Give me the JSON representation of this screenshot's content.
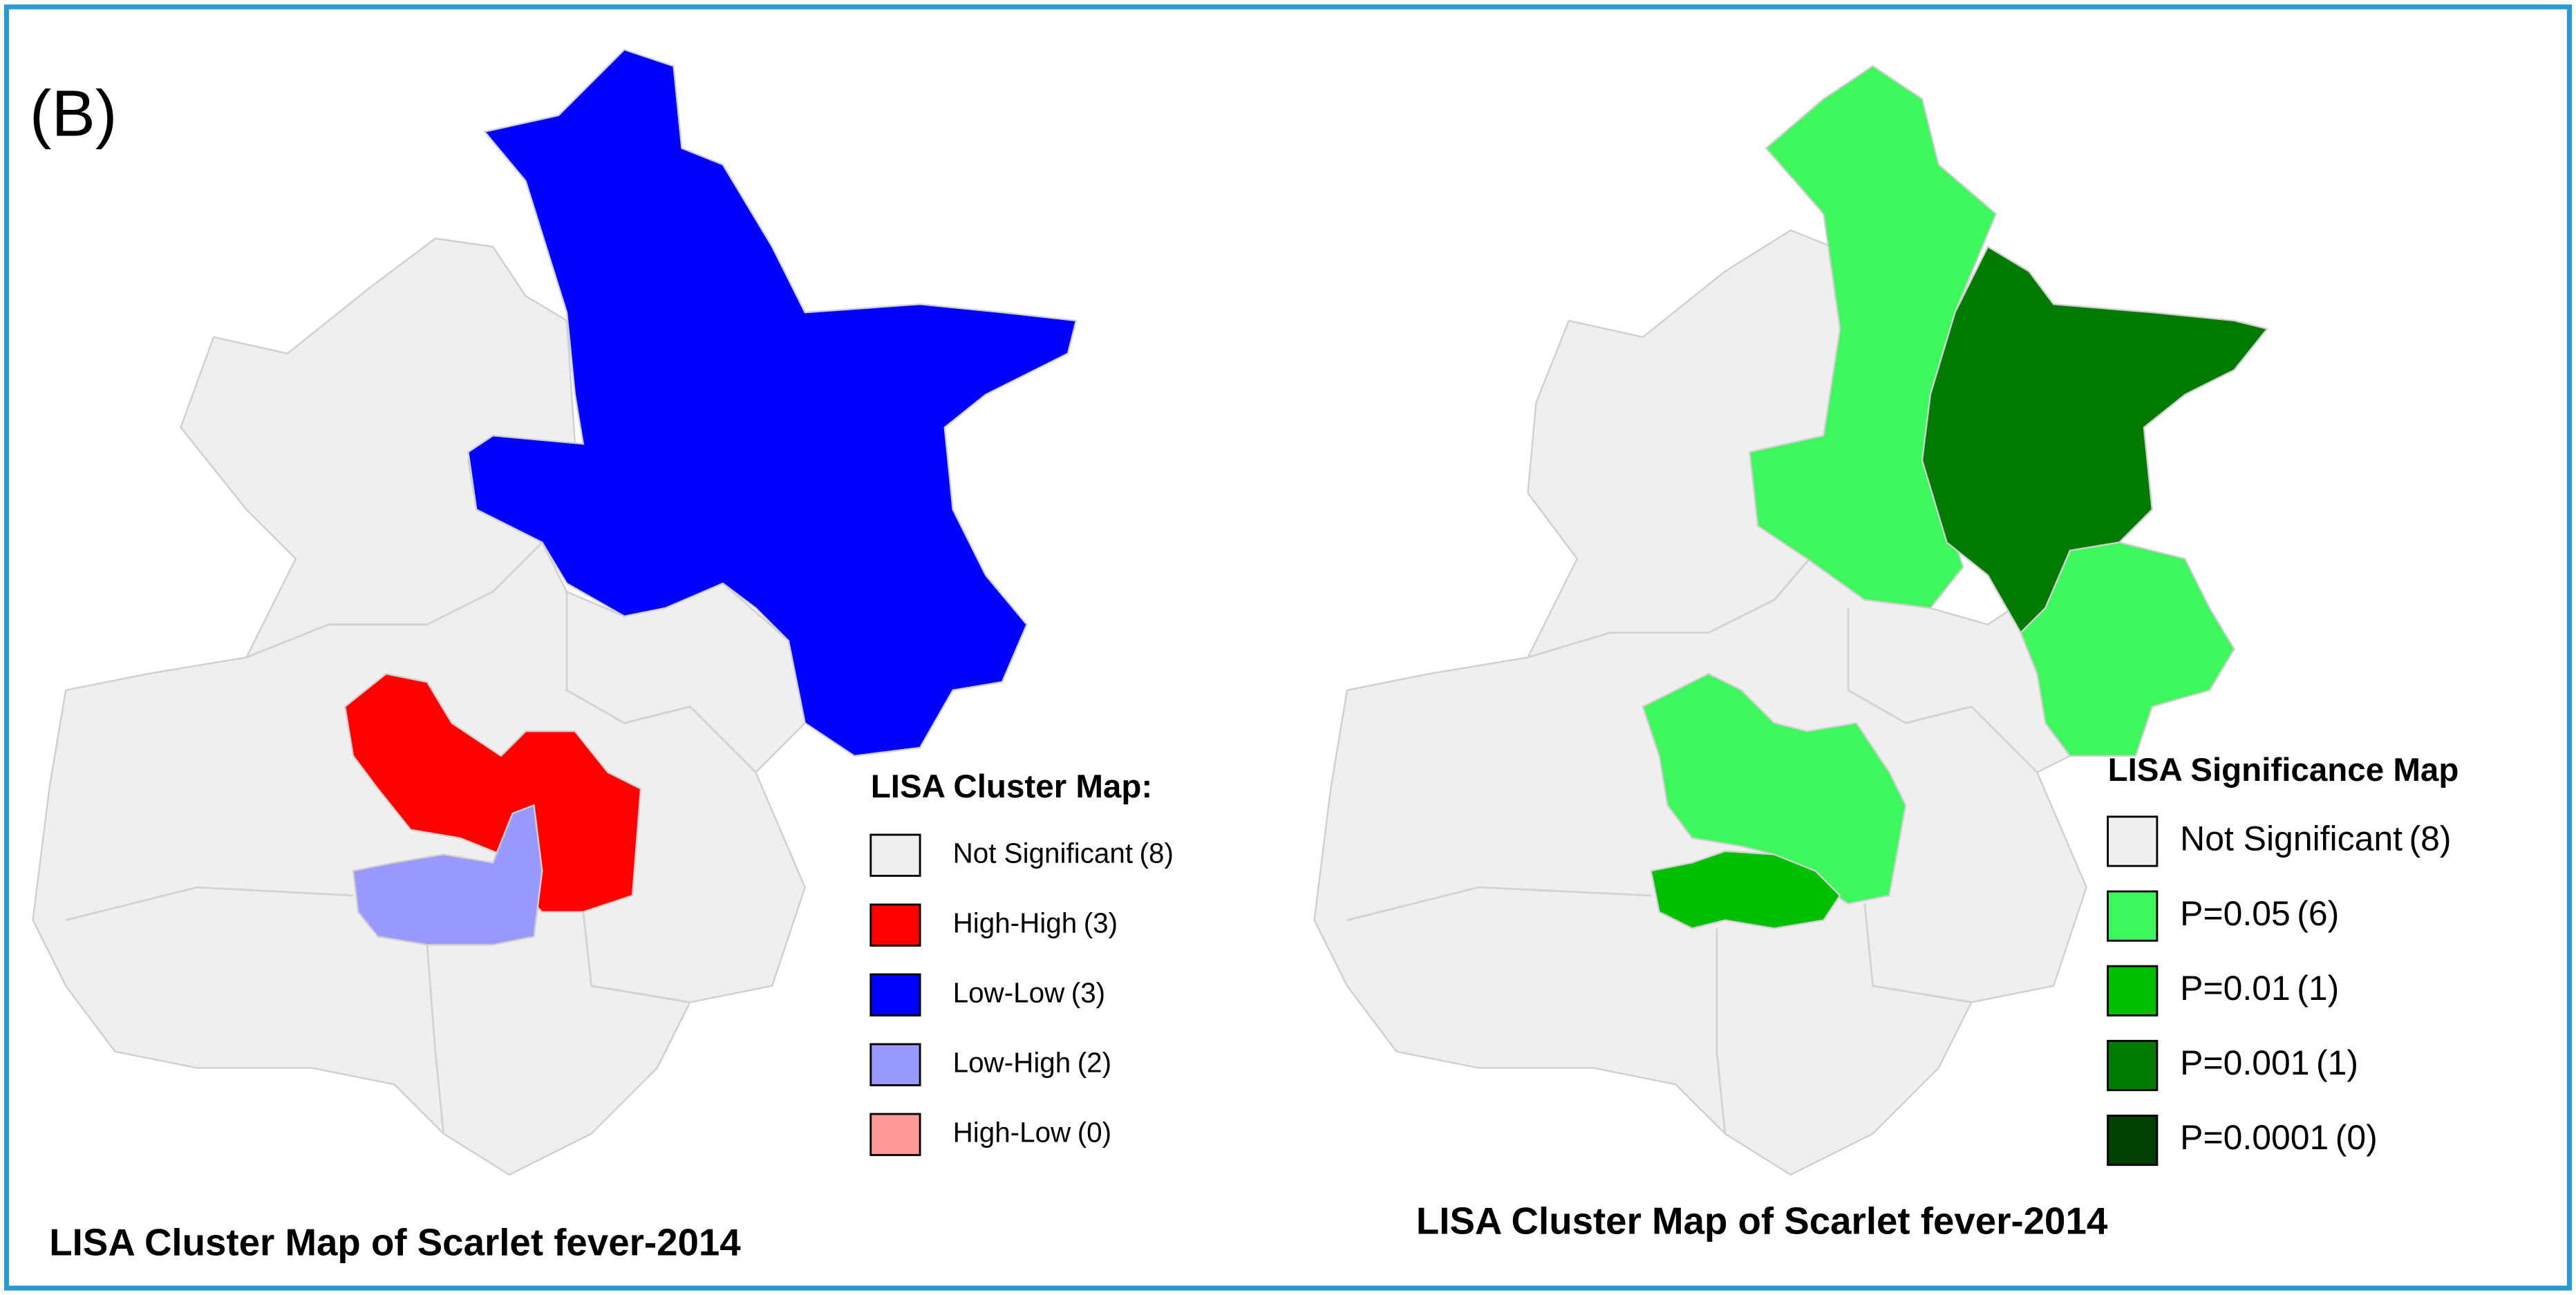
{
  "panel_label": "(B)",
  "maps": [
    {
      "title": "LISA Cluster Map of Scarlet fever-2014",
      "legend": {
        "title": "LISA Cluster Map:",
        "items": [
          {
            "label": "Not Significant",
            "count": "(8)",
            "color": "#efefef"
          },
          {
            "label": "High-High",
            "count": "(3)",
            "color": "#ff0000"
          },
          {
            "label": "Low-Low",
            "count": "(3)",
            "color": "#0000ff"
          },
          {
            "label": "Low-High",
            "count": "(2)",
            "color": "#9999ff"
          },
          {
            "label": "High-Low",
            "count": "(0)",
            "color": "#ff9999"
          }
        ]
      }
    },
    {
      "title": "LISA Cluster Map of Scarlet fever-2014",
      "legend": {
        "title": "LISA Significance Map",
        "items": [
          {
            "label": "Not Significant",
            "count": "(8)",
            "color": "#efefef"
          },
          {
            "label": "P=0.05",
            "count": "(6)",
            "color": "#3df75c"
          },
          {
            "label": "P=0.01",
            "count": "(1)",
            "color": "#00bf00"
          },
          {
            "label": "P=0.001",
            "count": "(1)",
            "color": "#007a00"
          },
          {
            "label": "P=0.0001",
            "count": "(0)",
            "color": "#004000"
          }
        ]
      }
    }
  ]
}
